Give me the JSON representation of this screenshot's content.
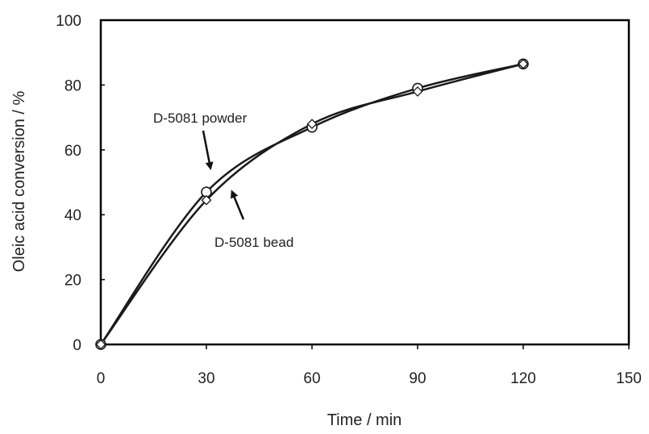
{
  "chart_data": {
    "type": "scatter",
    "xlabel": "Time / min",
    "ylabel": "Oleic acid conversion / %",
    "xlim": [
      0,
      150
    ],
    "ylim": [
      0,
      100
    ],
    "xticks": [
      0,
      30,
      60,
      90,
      120,
      150
    ],
    "yticks": [
      0,
      20,
      40,
      60,
      80,
      100
    ],
    "grid": false,
    "legend": "none",
    "series": [
      {
        "name": "D-5081 powder",
        "marker": "circle",
        "line": "smooth",
        "x": [
          0,
          30,
          60,
          90,
          120
        ],
        "y": [
          0,
          47,
          67,
          79,
          86.5
        ]
      },
      {
        "name": "D-5081 bead",
        "marker": "diamond",
        "line": "smooth",
        "x": [
          0,
          30,
          60,
          90,
          120
        ],
        "y": [
          0,
          44.5,
          68,
          78,
          86.5
        ]
      }
    ],
    "annotations": [
      {
        "text": "D-5081 powder",
        "series": 0
      },
      {
        "text": "D-5081 bead",
        "series": 1
      }
    ],
    "colors": {
      "line": "#1a1a1a",
      "marker_fill": "#ffffff",
      "axis": "#000000"
    }
  }
}
